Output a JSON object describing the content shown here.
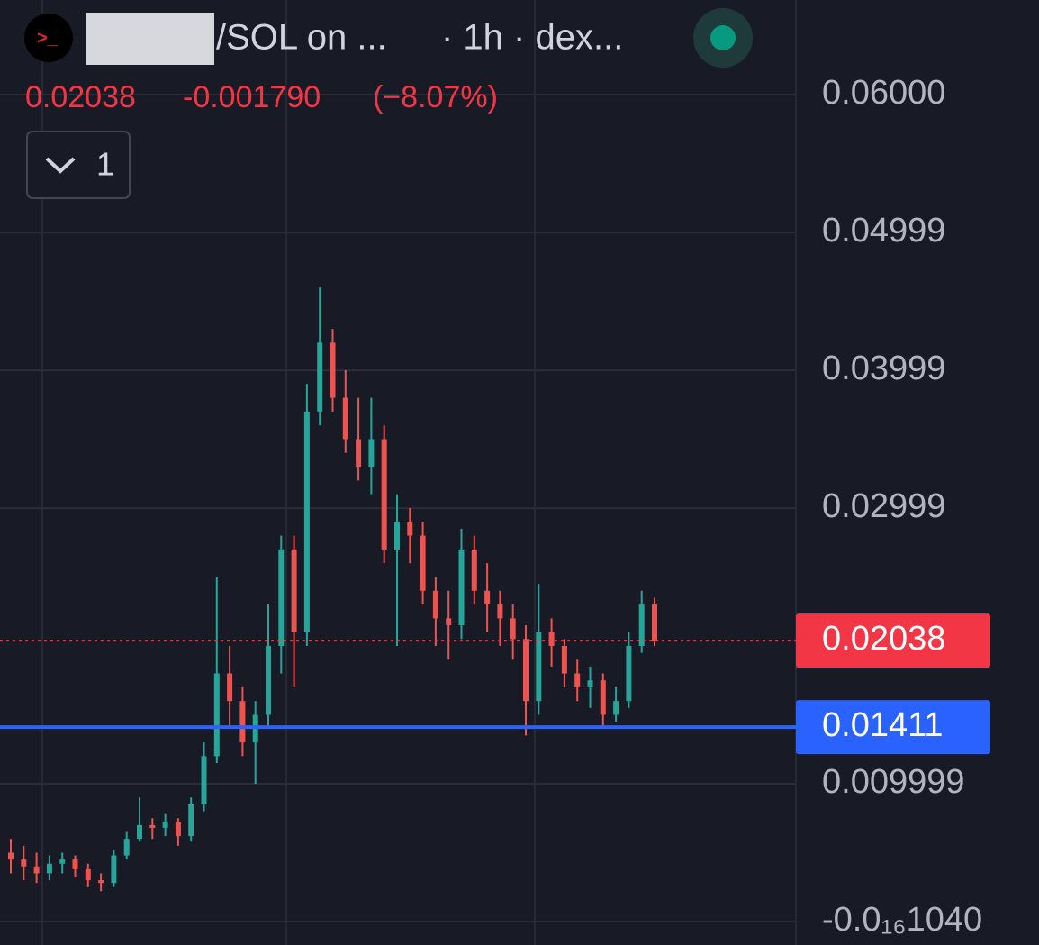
{
  "chart_data": {
    "type": "candlestick",
    "title": "/SOL on ...",
    "subtitle": "· 1h · dex...",
    "change_label": "-0.001790",
    "change_percent_label": "(−8.07%)",
    "indicator_count": 1,
    "ylim": [
      -0.0017,
      0.06686
    ],
    "yticks": [
      {
        "value": 0.06,
        "label": "0.06000"
      },
      0.04999,
      0.03999,
      0.02999,
      0.009999,
      {
        "value": -1.04e-17,
        "label": "-0.0₁₆1040"
      }
    ],
    "grid": true,
    "up_color": "#26a69a",
    "down_color": "#ef5350",
    "open": [
      0.005,
      0.0045,
      0.004,
      0.0035,
      0.0042,
      0.0045,
      0.0038,
      0.003,
      0.0028,
      0.0048,
      0.006,
      0.007,
      0.0068,
      0.0072,
      0.0062,
      0.0085,
      0.012,
      0.018,
      0.016,
      0.013,
      0.015,
      0.02,
      0.027,
      0.021,
      0.037,
      0.042,
      0.038,
      0.035,
      0.033,
      0.035,
      0.027,
      0.029,
      0.028,
      0.024,
      0.022,
      0.0215,
      0.027,
      0.024,
      0.023,
      0.022,
      0.0205,
      0.016,
      0.021,
      0.02,
      0.018,
      0.017,
      0.0175,
      0.015,
      0.016,
      0.02,
      0.023
    ],
    "high": [
      0.006,
      0.0055,
      0.005,
      0.0048,
      0.005,
      0.0048,
      0.0042,
      0.0035,
      0.0052,
      0.0065,
      0.009,
      0.0075,
      0.0078,
      0.0075,
      0.009,
      0.013,
      0.025,
      0.02,
      0.017,
      0.016,
      0.023,
      0.028,
      0.028,
      0.039,
      0.046,
      0.043,
      0.04,
      0.038,
      0.038,
      0.036,
      0.031,
      0.03,
      0.029,
      0.025,
      0.024,
      0.0285,
      0.028,
      0.026,
      0.024,
      0.023,
      0.0215,
      0.0245,
      0.022,
      0.0205,
      0.019,
      0.0185,
      0.018,
      0.017,
      0.021,
      0.024,
      0.0235
    ],
    "low": [
      0.0035,
      0.003,
      0.0028,
      0.003,
      0.0035,
      0.0032,
      0.0025,
      0.0022,
      0.0025,
      0.0045,
      0.0058,
      0.006,
      0.0062,
      0.0055,
      0.0058,
      0.008,
      0.0115,
      0.014,
      0.012,
      0.01,
      0.014,
      0.018,
      0.017,
      0.02,
      0.036,
      0.037,
      0.034,
      0.032,
      0.031,
      0.026,
      0.02,
      0.026,
      0.023,
      0.02,
      0.019,
      0.0205,
      0.023,
      0.021,
      0.02,
      0.019,
      0.0135,
      0.015,
      0.0185,
      0.017,
      0.016,
      0.0155,
      0.014,
      0.0145,
      0.0155,
      0.0195,
      0.02
    ],
    "close": [
      0.0045,
      0.004,
      0.0035,
      0.0042,
      0.0045,
      0.0038,
      0.003,
      0.0028,
      0.0048,
      0.006,
      0.007,
      0.0068,
      0.0072,
      0.0062,
      0.0085,
      0.012,
      0.018,
      0.016,
      0.013,
      0.015,
      0.02,
      0.027,
      0.021,
      0.037,
      0.042,
      0.038,
      0.035,
      0.033,
      0.035,
      0.027,
      0.029,
      0.028,
      0.024,
      0.022,
      0.0215,
      0.027,
      0.024,
      0.023,
      0.022,
      0.0205,
      0.016,
      0.021,
      0.02,
      0.018,
      0.017,
      0.0175,
      0.015,
      0.016,
      0.02,
      0.023,
      0.02038
    ],
    "price_lines": [
      {
        "value": 0.02038,
        "color": "#f23645",
        "style": "dotted"
      },
      {
        "value": 0.01411,
        "color": "#2962ff",
        "style": "solid"
      }
    ]
  }
}
